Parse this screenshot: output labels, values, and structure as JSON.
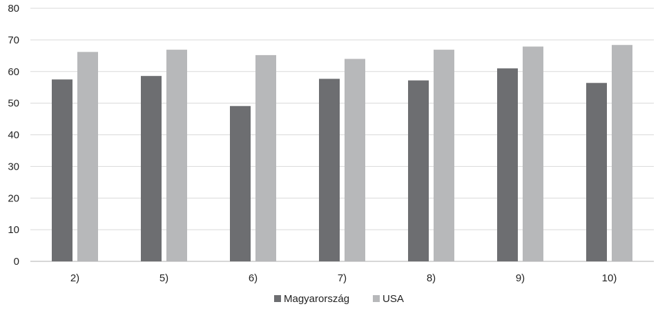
{
  "chart_data": {
    "type": "bar",
    "categories": [
      "2)",
      "5)",
      "6)",
      "7)",
      "8)",
      "9)",
      "10)"
    ],
    "series": [
      {
        "name": "Magyarország",
        "color": "#6d6e71",
        "values": [
          57.5,
          58.6,
          49.1,
          57.7,
          57.2,
          61.0,
          56.4
        ]
      },
      {
        "name": "USA",
        "color": "#b7b8ba",
        "values": [
          66.2,
          66.9,
          65.2,
          64.0,
          66.9,
          67.9,
          68.4
        ]
      }
    ],
    "ylim": [
      0,
      80
    ],
    "yticks": [
      "0",
      "10",
      "20",
      "30",
      "40",
      "50",
      "60",
      "70",
      "80"
    ],
    "grid": true,
    "legend": "bottom",
    "title": "",
    "xlabel": "",
    "ylabel": ""
  }
}
